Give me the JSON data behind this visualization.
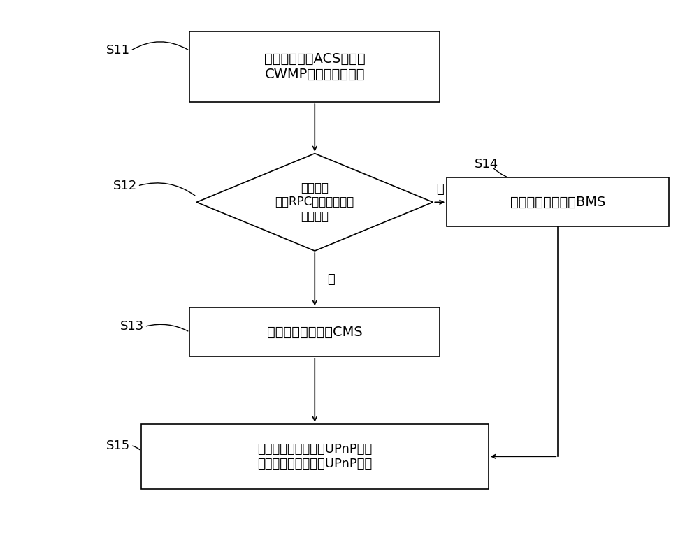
{
  "bg_color": "#ffffff",
  "text_color": "#000000",
  "box_color": "#ffffff",
  "box_edge_color": "#000000",
  "line_color": "#000000",
  "font_size_main": 14,
  "font_size_label": 13,
  "font_size_step": 13,
  "s11_label": "S11",
  "s12_label": "S12",
  "s13_label": "S13",
  "s14_label": "S14",
  "s15_label": "S15",
  "box1_text": "家庭网关收到ACS发送的\nCWMP协议的请求报文",
  "diamond_text": "请求报文\n中的RPC方法是否操作\n数据模型",
  "box3_text": "将请求报文转换为CMS",
  "box4_text": "将请求报文转换为BMS",
  "box5_text": "转换后的命令封装成UPnP协议\n报文，发送给终端的UPnP设备",
  "yes_label": "是",
  "no_label": "否"
}
